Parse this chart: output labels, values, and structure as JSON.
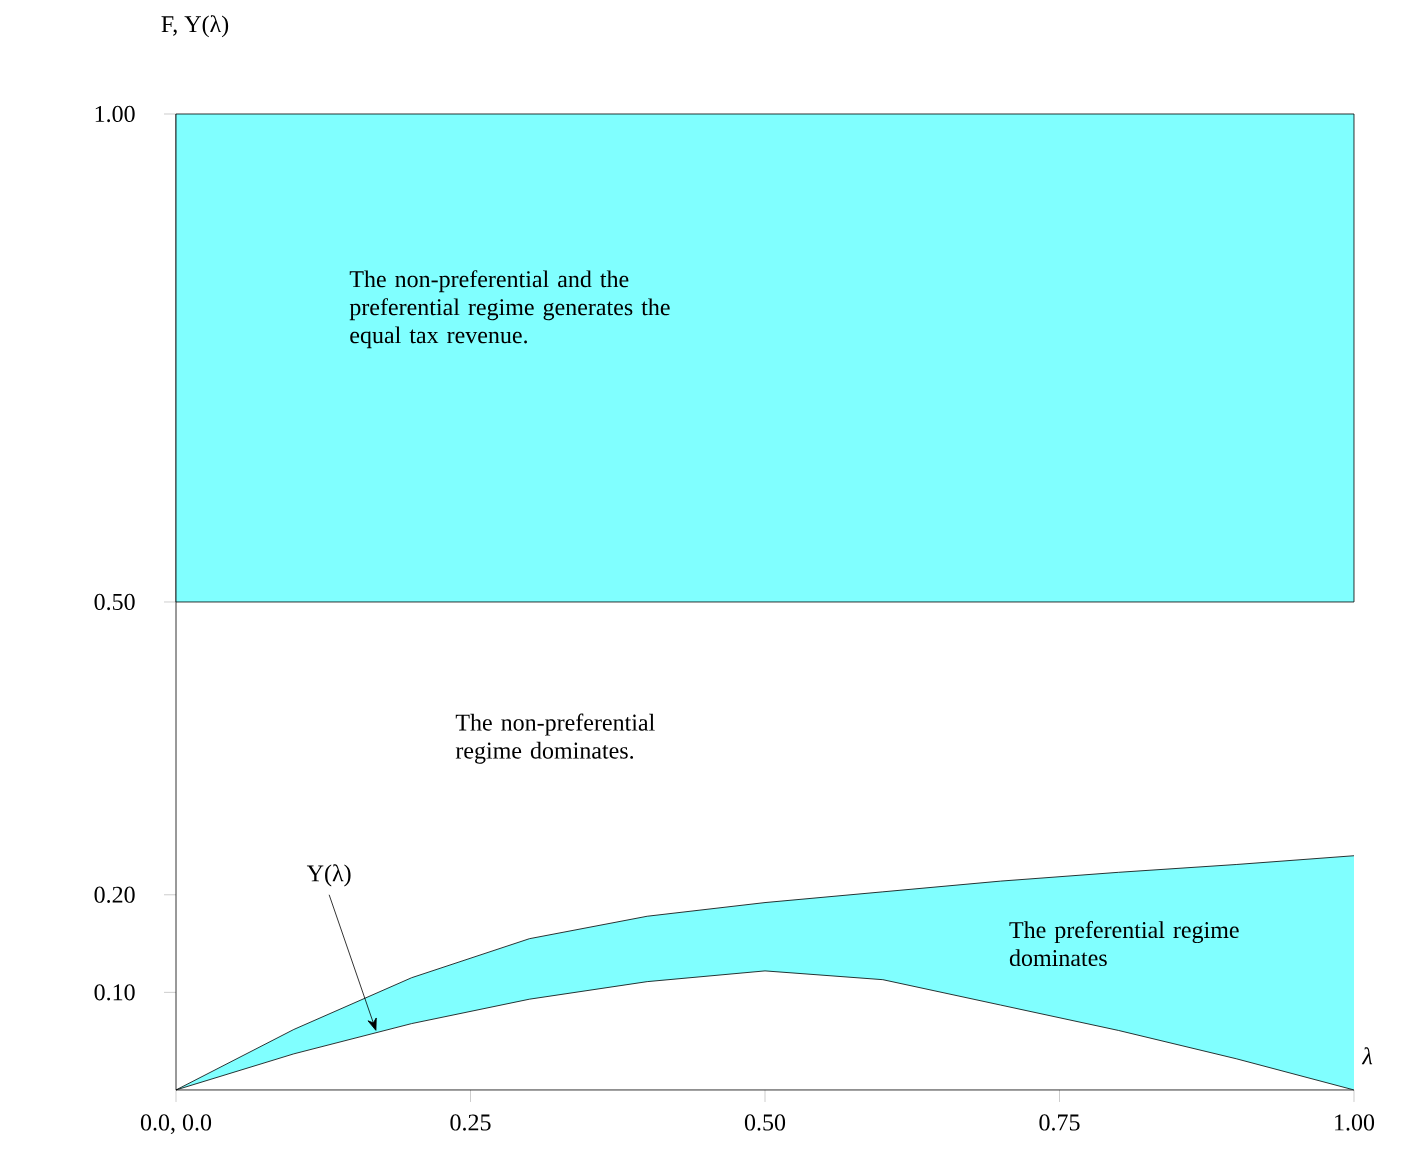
{
  "chart_data": {
    "type": "line",
    "xlabel": "λ",
    "ylabel": "F, Y(λ)",
    "x": [
      0,
      0.1,
      0.2,
      0.3,
      0.4,
      0.5,
      0.6,
      0.7,
      0.8,
      0.9,
      1.0
    ],
    "series": [
      {
        "color": "#000000",
        "values": [
          0,
          0.062,
          0.115,
          0.155,
          0.178,
          0.192,
          0.203,
          0.214,
          0.223,
          0.231,
          0.24
        ]
      },
      {
        "color": "#000000",
        "values": [
          0,
          0.037,
          0.068,
          0.093,
          0.111,
          0.122,
          0.113,
          0.087,
          0.061,
          0.032,
          0
        ],
        "lower": [
          0,
          0.037,
          0.068,
          0.093,
          0.111,
          0.122,
          0.113,
          0.087,
          0.061,
          0.032,
          0
        ],
        "upper": [
          0,
          0.062,
          0.115,
          0.155,
          0.178,
          0.192,
          0.203,
          0.214,
          0.223,
          0.231,
          0.24
        ]
      }
    ],
    "bands": [
      {
        "axis": "y",
        "from": 0.5,
        "to": 1.0,
        "color": "#80ffff"
      }
    ],
    "xlim": [
      0,
      1
    ],
    "ylim": [
      0,
      1
    ],
    "xticks": [
      {
        "value": 0,
        "label": "0.0, 0.0"
      },
      {
        "value": 0.25,
        "label": "0.25"
      },
      {
        "value": 0.5,
        "label": "0.50"
      },
      {
        "value": 0.75,
        "label": "0.75"
      },
      {
        "value": 1.0,
        "label": "1.00"
      }
    ],
    "yticks": [
      {
        "value": 0.1,
        "label": "0.10"
      },
      {
        "value": 0.2,
        "label": "0.20"
      },
      {
        "value": 0.5,
        "label": "0.50"
      },
      {
        "value": 1.0,
        "label": "1.00"
      }
    ],
    "annotations": [
      "The non-preferential and the preferential regime generates the equal tax revenue.",
      "The non-preferential regime dominates.",
      "The preferential regime dominates",
      {
        "text": "Y(λ)",
        "x": 0.17,
        "y": 0.06
      }
    ]
  }
}
